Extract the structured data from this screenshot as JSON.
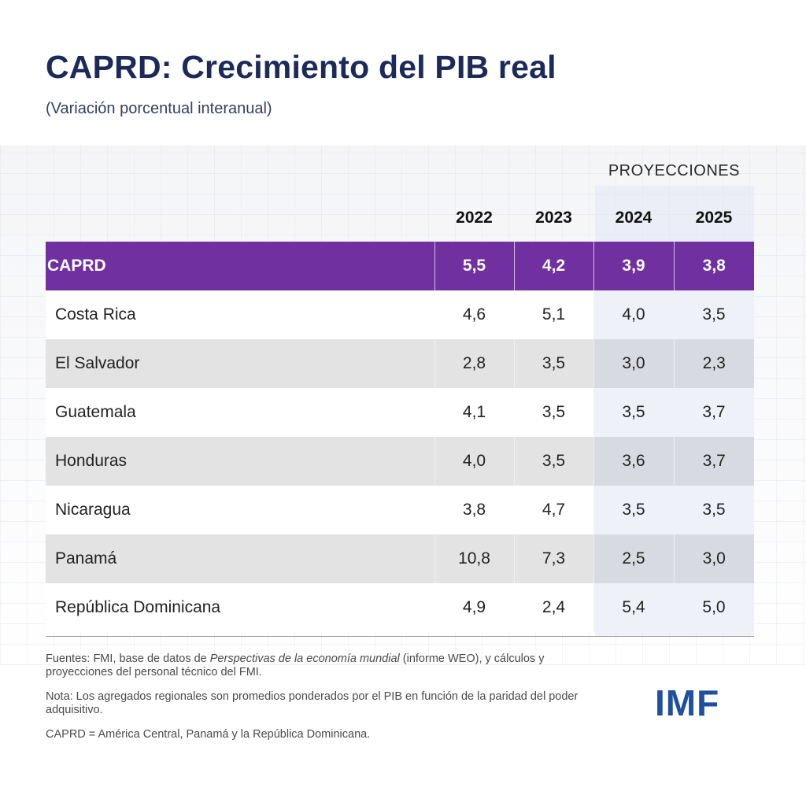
{
  "header": {
    "title": "CAPRD: Crecimiento del PIB real",
    "subtitle": "(Variación porcentual interanual)"
  },
  "table": {
    "projections_label": "PROYECCIONES",
    "years": [
      "2022",
      "2023",
      "2024",
      "2025"
    ],
    "aggregate": {
      "name": "CAPRD",
      "values": [
        "5,5",
        "4,2",
        "3,9",
        "3,8"
      ]
    },
    "rows": [
      {
        "name": "Costa Rica",
        "values": [
          "4,6",
          "5,1",
          "4,0",
          "3,5"
        ]
      },
      {
        "name": "El Salvador",
        "values": [
          "2,8",
          "3,5",
          "3,0",
          "2,3"
        ]
      },
      {
        "name": "Guatemala",
        "values": [
          "4,1",
          "3,5",
          "3,5",
          "3,7"
        ]
      },
      {
        "name": "Honduras",
        "values": [
          "4,0",
          "3,5",
          "3,6",
          "3,7"
        ]
      },
      {
        "name": "Nicaragua",
        "values": [
          "3,8",
          "4,7",
          "3,5",
          "3,5"
        ]
      },
      {
        "name": "Panamá",
        "values": [
          "10,8",
          "7,3",
          "2,5",
          "3,0"
        ]
      },
      {
        "name": "República Dominicana",
        "values": [
          "4,9",
          "2,4",
          "5,4",
          "5,0"
        ]
      }
    ]
  },
  "chart_data": {
    "type": "table",
    "title": "CAPRD: Crecimiento del PIB real",
    "subtitle": "(Variación porcentual interanual)",
    "columns": [
      "2022",
      "2023",
      "2024",
      "2025"
    ],
    "projection_columns": [
      "2024",
      "2025"
    ],
    "series": [
      {
        "name": "CAPRD",
        "values": [
          5.5,
          4.2,
          3.9,
          3.8
        ]
      },
      {
        "name": "Costa Rica",
        "values": [
          4.6,
          5.1,
          4.0,
          3.5
        ]
      },
      {
        "name": "El Salvador",
        "values": [
          2.8,
          3.5,
          3.0,
          2.3
        ]
      },
      {
        "name": "Guatemala",
        "values": [
          4.1,
          3.5,
          3.5,
          3.7
        ]
      },
      {
        "name": "Honduras",
        "values": [
          4.0,
          3.5,
          3.6,
          3.7
        ]
      },
      {
        "name": "Nicaragua",
        "values": [
          3.8,
          4.7,
          3.5,
          3.5
        ]
      },
      {
        "name": "Panamá",
        "values": [
          10.8,
          7.3,
          2.5,
          3.0
        ]
      },
      {
        "name": "República Dominicana",
        "values": [
          4.9,
          2.4,
          5.4,
          5.0
        ]
      }
    ]
  },
  "notes": {
    "sources_prefix": "Fuentes: FMI, base de datos de ",
    "sources_italic": "Perspectivas de la economía mundial",
    "sources_suffix": " (informe WEO), y cálculos y proyecciones del personal técnico del FMI.",
    "note": "Nota: Los agregados regionales son promedios ponderados por el PIB en función de la paridad del poder adquisitivo.",
    "definition": "CAPRD = América Central, Panamá y la República Dominicana."
  },
  "logo": {
    "text": "IMF"
  },
  "colors": {
    "title": "#1c2a5a",
    "aggregate_row": "#7130a0",
    "logo": "#1f4fa0"
  }
}
